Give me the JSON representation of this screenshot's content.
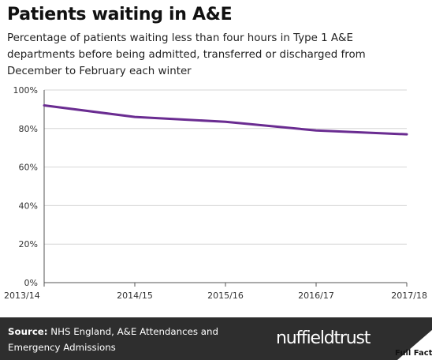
{
  "title": "Patients waiting in A&E",
  "subtitle": "Percentage of patients waiting less than four hours in Type 1 A&E departments before being admitted, transferred or discharged from December to February each winter",
  "chart_data": {
    "type": "line",
    "categories": [
      "2013/14",
      "2014/15",
      "2015/16",
      "2016/17",
      "2017/18"
    ],
    "series": [
      {
        "values": [
          92,
          86,
          83.5,
          79,
          77
        ],
        "color": "#6a2c91"
      }
    ],
    "ylim": [
      0,
      100
    ],
    "yticks": [
      0,
      20,
      40,
      60,
      80,
      100
    ],
    "ytick_labels": [
      "0%",
      "20%",
      "40%",
      "60%",
      "80%",
      "100%"
    ],
    "grid": true,
    "xlabel": "",
    "ylabel": ""
  },
  "footer": {
    "source_label": "Source:",
    "source_text": " NHS England, A&E Attendances and Emergency Admissions",
    "logo_text": "nuffieldtrust",
    "badge_text": "Full Fact"
  },
  "colors": {
    "line": "#6a2c91",
    "grid": "#d6d6d6",
    "footer_bg": "#2e2e2e"
  }
}
